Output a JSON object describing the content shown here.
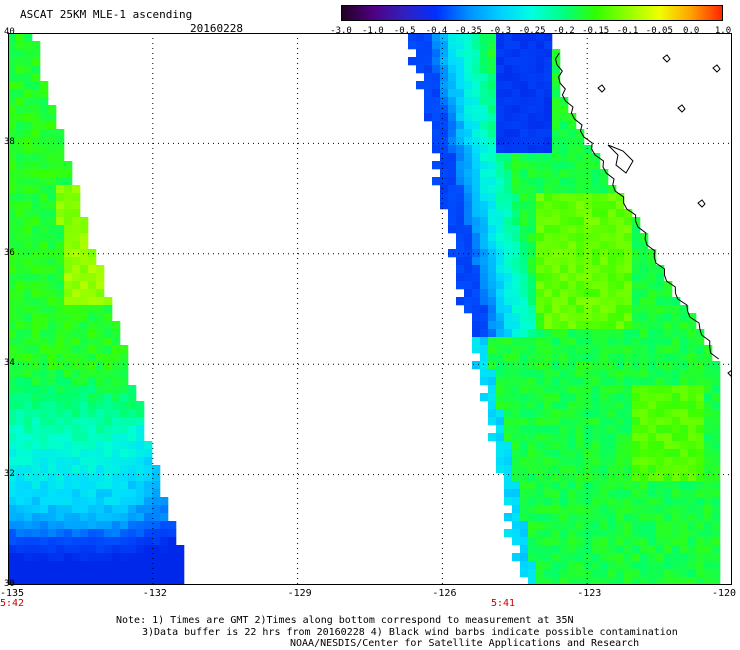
{
  "header": {
    "title": "ASCAT 25KM MLE-1 ascending",
    "date": "20160228"
  },
  "colorbar": {
    "labels": [
      "-3.0",
      "-1.0",
      "-0.5",
      "-0.4",
      "-0.35",
      "-0.3",
      "-0.25",
      "-0.2",
      "-0.15",
      "-0.1",
      "-0.05",
      "0.0",
      "1.0"
    ],
    "colors": [
      "#200020",
      "#500080",
      "#3020c0",
      "#0030ff",
      "#0090ff",
      "#00d0ff",
      "#00ffe0",
      "#00ff80",
      "#30ff00",
      "#90ff00",
      "#f0ff00",
      "#ffa000",
      "#ff2000"
    ]
  },
  "map": {
    "lon_range": [
      -135,
      -120
    ],
    "lat_range": [
      30,
      40
    ],
    "y_ticks": [
      "40",
      "38",
      "36",
      "34",
      "32",
      "30"
    ],
    "x_ticks": [
      "-135",
      "-132",
      "-129",
      "-126",
      "-123",
      "-120"
    ],
    "swath_times": [
      "5:42",
      "5:41"
    ],
    "time_color": "#cc0000",
    "coast_color": "#000000",
    "grid_color": "#000000"
  },
  "notes": {
    "line1": "Note: 1) Times are GMT 2)Times along bottom correspond to measurement at 35N",
    "line2": "3)Data buffer is 22 hrs from 20160228 4) Black wind barbs indicate possible contamination",
    "line3": "NOAA/NESDIS/Center for Satellite Applications and Research"
  }
}
